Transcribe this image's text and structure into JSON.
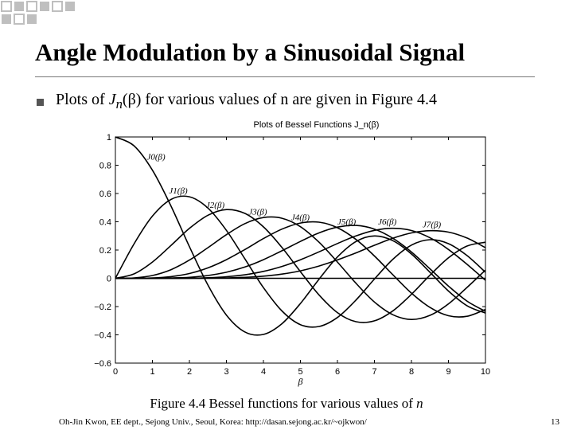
{
  "slide": {
    "title": "Angle Modulation by a Sinusoidal Signal",
    "bullet_pre": "Plots of ",
    "bullet_J": "J",
    "bullet_n": "n",
    "bullet_beta": "(β)",
    "bullet_post": " for various values of n are given in Figure 4.4",
    "caption_main": "Figure 4.4 Bessel functions for various values of ",
    "caption_n": "n",
    "footer": "Oh-Jin Kwon, EE dept., Sejong Univ., Seoul, Korea:   http://dasan.sejong.ac.kr/~ojkwon/",
    "page_number": "13"
  },
  "colors": {
    "decor": "#bfbfbf",
    "ink": "#000000",
    "rule": "#777777"
  },
  "chart_data": {
    "type": "line",
    "title": "Plots of Bessel Functions J_n(β)",
    "xlabel": "β",
    "ylabel": "",
    "xlim": [
      0,
      10
    ],
    "ylim": [
      -0.6,
      1
    ],
    "x_ticks": [
      "0",
      "1",
      "2",
      "3",
      "4",
      "5",
      "6",
      "7",
      "8",
      "9",
      "10"
    ],
    "y_ticks": [
      "−0.6",
      "−0.4",
      "−0.2",
      "0",
      "0.2",
      "0.4",
      "0.6",
      "0.8",
      "1"
    ],
    "grid": false,
    "x": [
      0,
      0.5,
      1,
      1.5,
      2,
      2.5,
      3,
      3.5,
      4,
      4.5,
      5,
      5.5,
      6,
      6.5,
      7,
      7.5,
      8,
      8.5,
      9,
      9.5,
      10
    ],
    "series": [
      {
        "name": "J0(β)",
        "values": [
          1.0,
          0.938,
          0.765,
          0.512,
          0.224,
          -0.048,
          -0.26,
          -0.38,
          -0.397,
          -0.321,
          -0.178,
          -0.007,
          0.151,
          0.26,
          0.3,
          0.266,
          0.172,
          0.042,
          -0.09,
          -0.194,
          -0.246
        ]
      },
      {
        "name": "J1(β)",
        "values": [
          0.0,
          0.242,
          0.44,
          0.558,
          0.577,
          0.497,
          0.339,
          0.137,
          -0.066,
          -0.231,
          -0.328,
          -0.341,
          -0.277,
          -0.154,
          -0.005,
          0.135,
          0.235,
          0.273,
          0.245,
          0.161,
          0.043
        ]
      },
      {
        "name": "J2(β)",
        "values": [
          0.0,
          0.031,
          0.115,
          0.232,
          0.353,
          0.446,
          0.486,
          0.459,
          0.364,
          0.218,
          0.047,
          -0.117,
          -0.243,
          -0.307,
          -0.301,
          -0.23,
          -0.113,
          0.022,
          0.145,
          0.228,
          0.255
        ]
      },
      {
        "name": "J3(β)",
        "values": [
          0.0,
          0.003,
          0.02,
          0.061,
          0.129,
          0.217,
          0.309,
          0.387,
          0.43,
          0.425,
          0.365,
          0.256,
          0.115,
          -0.035,
          -0.168,
          -0.258,
          -0.291,
          -0.262,
          -0.181,
          -0.065,
          0.058
        ]
      },
      {
        "name": "J4(β)",
        "values": [
          0.0,
          0.0,
          0.002,
          0.012,
          0.034,
          0.074,
          0.132,
          0.204,
          0.281,
          0.348,
          0.391,
          0.397,
          0.358,
          0.275,
          0.158,
          0.024,
          -0.105,
          -0.206,
          -0.265,
          -0.269,
          -0.22
        ]
      },
      {
        "name": "J5(β)",
        "values": [
          0.0,
          0.0,
          0.0,
          0.002,
          0.007,
          0.02,
          0.043,
          0.08,
          0.132,
          0.195,
          0.261,
          0.321,
          0.362,
          0.374,
          0.348,
          0.283,
          0.186,
          0.067,
          -0.055,
          -0.161,
          -0.234
        ]
      },
      {
        "name": "J6(β)",
        "values": [
          0.0,
          0.0,
          0.0,
          0.0,
          0.001,
          0.004,
          0.011,
          0.025,
          0.049,
          0.084,
          0.131,
          0.187,
          0.246,
          0.3,
          0.339,
          0.354,
          0.338,
          0.287,
          0.204,
          0.099,
          -0.014
        ]
      },
      {
        "name": "J7(β)",
        "values": [
          0.0,
          0.0,
          0.0,
          0.0,
          0.0,
          0.001,
          0.003,
          0.007,
          0.015,
          0.03,
          0.053,
          0.087,
          0.13,
          0.18,
          0.234,
          0.284,
          0.321,
          0.337,
          0.327,
          0.285,
          0.217
        ]
      }
    ]
  }
}
